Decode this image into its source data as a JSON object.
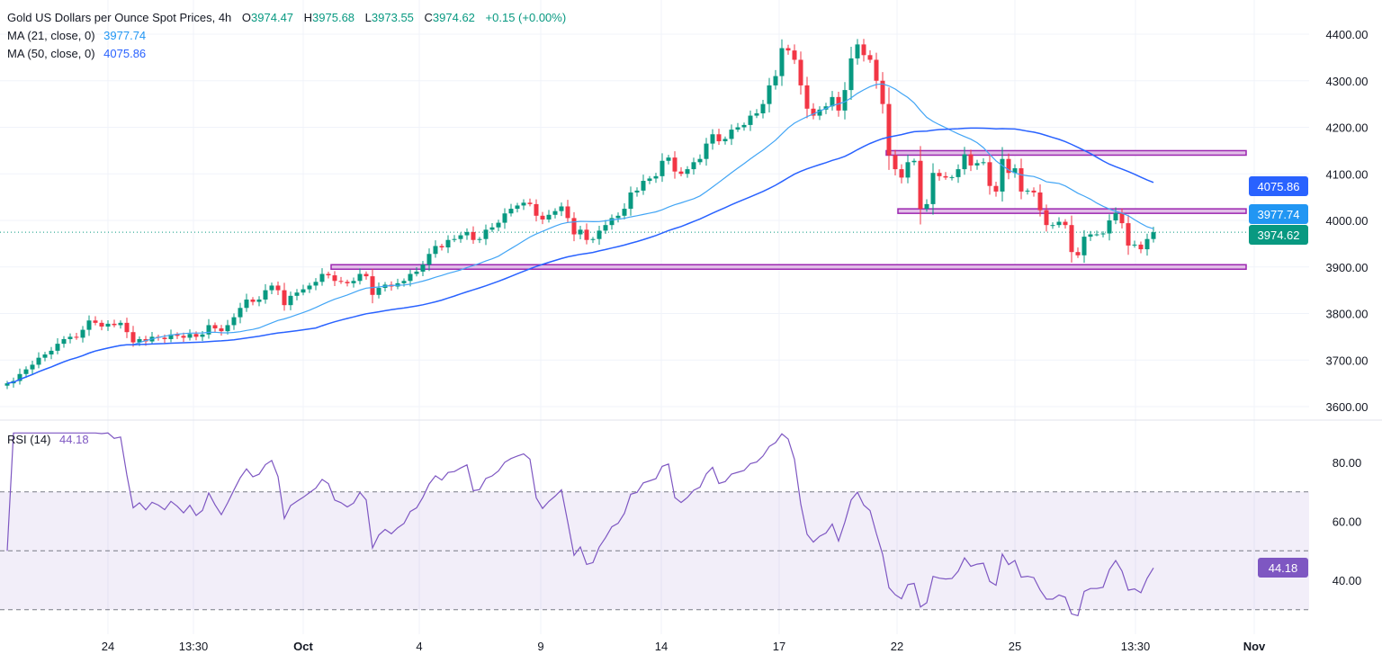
{
  "header": {
    "title": "Gold US Dollars per Ounce Spot Prices, 4h",
    "o_label": "O",
    "o": "3974.47",
    "h_label": "H",
    "h": "3975.68",
    "l_label": "L",
    "l": "3973.55",
    "c_label": "C",
    "c": "3974.62",
    "change": "+0.15 (+0.00%)",
    "ma21_label": "MA (21, close, 0)",
    "ma21_value": "3977.74",
    "ma50_label": "MA (50, close, 0)",
    "ma50_value": "4075.86",
    "rsi_label": "RSI (14)",
    "rsi_value": "44.18"
  },
  "colors": {
    "up": "#089981",
    "down": "#f23645",
    "ma21": "#42a5f5",
    "ma50": "#2962ff",
    "level": "#9c27b0",
    "rsi": "#7e57c2",
    "text": "#131722"
  },
  "chart_data": [
    {
      "type": "candlestick",
      "interval": "4h",
      "price_ticks": [
        "4400.00",
        "4300.00",
        "4200.00",
        "4100.00",
        "4000.00",
        "3900.00",
        "3800.00",
        "3700.00",
        "3600.00"
      ],
      "ylim": [
        3600,
        4400
      ],
      "x_tick_labels": [
        "24",
        "13:30",
        "Oct",
        "4",
        "9",
        "14",
        "17",
        "22",
        "25",
        "13:30",
        "Nov"
      ],
      "grid": true,
      "closes": [
        3650,
        3655,
        3670,
        3680,
        3690,
        3705,
        3712,
        3720,
        3735,
        3745,
        3750,
        3748,
        3765,
        3785,
        3780,
        3772,
        3778,
        3775,
        3780,
        3760,
        3738,
        3745,
        3740,
        3750,
        3748,
        3745,
        3755,
        3752,
        3748,
        3756,
        3750,
        3755,
        3775,
        3768,
        3762,
        3775,
        3792,
        3812,
        3830,
        3825,
        3830,
        3850,
        3860,
        3850,
        3818,
        3838,
        3845,
        3852,
        3860,
        3868,
        3885,
        3882,
        3870,
        3868,
        3865,
        3870,
        3885,
        3880,
        3840,
        3855,
        3862,
        3858,
        3865,
        3870,
        3885,
        3890,
        3905,
        3928,
        3945,
        3942,
        3958,
        3960,
        3968,
        3975,
        3958,
        3960,
        3980,
        3985,
        3995,
        4015,
        4025,
        4032,
        4038,
        4035,
        4010,
        4002,
        4012,
        4020,
        4030,
        4005,
        3970,
        3980,
        3958,
        3960,
        3978,
        3990,
        4005,
        4010,
        4025,
        4060,
        4064,
        4085,
        4090,
        4095,
        4128,
        4135,
        4105,
        4100,
        4110,
        4125,
        4132,
        4165,
        4185,
        4170,
        4175,
        4195,
        4200,
        4205,
        4225,
        4230,
        4250,
        4290,
        4310,
        4370,
        4365,
        4345,
        4290,
        4240,
        4225,
        4238,
        4245,
        4265,
        4236,
        4280,
        4348,
        4378,
        4355,
        4345,
        4300,
        4250,
        4140,
        4110,
        4092,
        4125,
        4128,
        4025,
        4035,
        4102,
        4095,
        4092,
        4093,
        4110,
        4142,
        4118,
        4123,
        4125,
        4074,
        4062,
        4132,
        4102,
        4112,
        4062,
        4064,
        4060,
        4022,
        3990,
        3990,
        3997,
        3990,
        3932,
        3925,
        3965,
        3970,
        3970,
        3972,
        4000,
        4016,
        3994,
        3946,
        3948,
        3938,
        3960,
        3974.62
      ],
      "moving_averages": [
        {
          "name": "MA (21, close, 0)",
          "period": 21,
          "last": 3977.74
        },
        {
          "name": "MA (50, close, 0)",
          "period": 50,
          "last": 4075.86
        }
      ],
      "horizontal_levels": [
        4145,
        4020,
        3900
      ],
      "current_price": 3974.62,
      "price_labels": [
        "4075.86",
        "3977.74",
        "3974.62"
      ]
    },
    {
      "type": "line",
      "name": "RSI (14)",
      "period": 14,
      "last": 44.18,
      "ylim": [
        25,
        90
      ],
      "tick_labels": [
        "80.00",
        "60.00",
        "40.00"
      ],
      "levels": [
        70,
        50,
        30
      ],
      "band": [
        30,
        70
      ]
    }
  ]
}
